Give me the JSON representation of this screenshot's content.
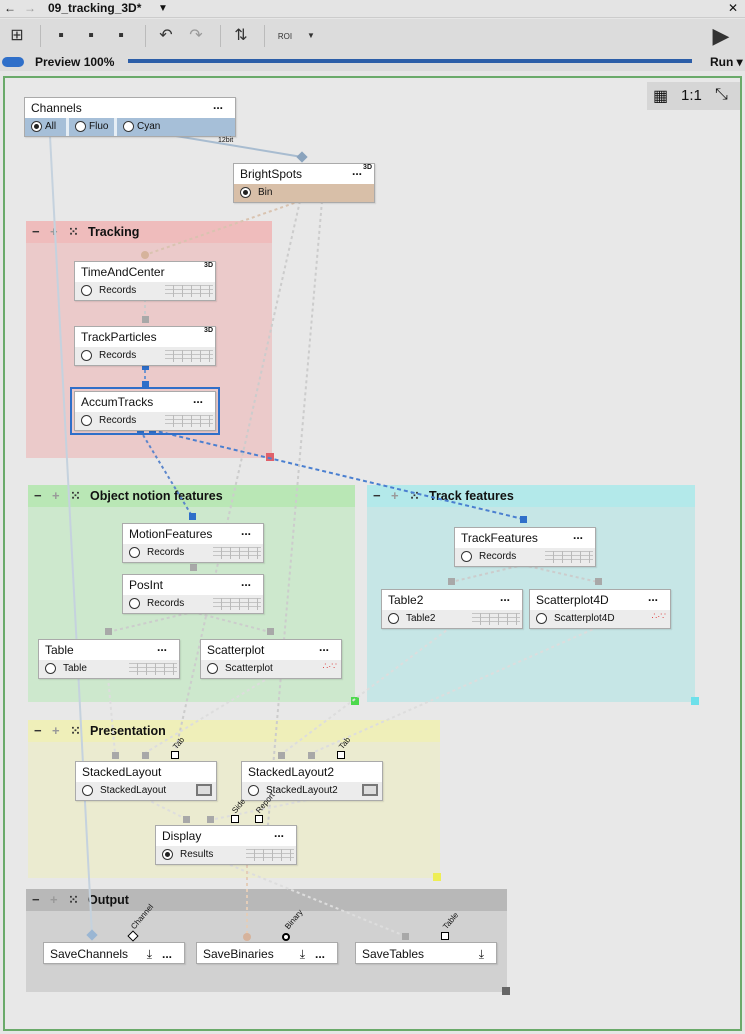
{
  "window": {
    "title": "09_tracking_3D*",
    "back": "←",
    "forward": "→",
    "close": "✕"
  },
  "toolbar": {
    "roi_label": "ROI",
    "preview_label": "Preview 100%",
    "preview_fraction": 1.0,
    "run_label": "Run"
  },
  "canvas_controls": {
    "zoom_label": "1:1"
  },
  "nodes": {
    "channels": {
      "title": "Channels",
      "menu": "...",
      "outputs": [
        "All",
        "Fluo",
        "Cyan"
      ],
      "port_label": "12bit"
    },
    "brightspots": {
      "title": "BrightSpots",
      "badge": "3D",
      "menu": "...",
      "output": "Bin"
    },
    "timeandcenter": {
      "title": "TimeAndCenter",
      "badge": "3D",
      "menu": "...",
      "output": "Records"
    },
    "trackparticles": {
      "title": "TrackParticles",
      "badge": "3D",
      "menu": "...",
      "output": "Records"
    },
    "accumtracks": {
      "title": "AccumTracks",
      "menu": "...",
      "output": "Records"
    },
    "motionfeatures": {
      "title": "MotionFeatures",
      "menu": "...",
      "output": "Records"
    },
    "posint": {
      "title": "PosInt",
      "menu": "...",
      "output": "Records"
    },
    "table": {
      "title": "Table",
      "menu": "...",
      "output": "Table"
    },
    "scatterplot": {
      "title": "Scatterplot",
      "menu": "...",
      "output": "Scatterplot"
    },
    "trackfeatures": {
      "title": "TrackFeatures",
      "menu": "...",
      "output": "Records"
    },
    "table2": {
      "title": "Table2",
      "menu": "...",
      "output": "Table2"
    },
    "scatterplot4d": {
      "title": "Scatterplot4D",
      "menu": "...",
      "output": "Scatterplot4D"
    },
    "stackedlayout": {
      "title": "StackedLayout",
      "output": "StackedLayout",
      "port_label": "Tab"
    },
    "stackedlayout2": {
      "title": "StackedLayout2",
      "output": "StackedLayout2",
      "port_label": "Tab"
    },
    "display": {
      "title": "Display",
      "menu": "...",
      "output": "Results",
      "port_labels": [
        "Side",
        "Report"
      ]
    },
    "savechannels": {
      "title": "SaveChannels",
      "menu": "...",
      "port_label": "Channel"
    },
    "savebinaries": {
      "title": "SaveBinaries",
      "menu": "...",
      "port_label": "Binary"
    },
    "savetables": {
      "title": "SaveTables",
      "port_label": "Table"
    }
  },
  "groups": {
    "tracking": {
      "title": "Tracking",
      "color": "#efbcbc"
    },
    "object": {
      "title": "Object notion features",
      "color": "#b9e7b5"
    },
    "track": {
      "title": "Track features",
      "color": "#b3e9ea"
    },
    "presentation": {
      "title": "Presentation",
      "color": "#efefb9"
    },
    "output": {
      "title": "Output",
      "color": "#b8b8b8"
    }
  },
  "group_controls": {
    "collapse": "−",
    "expand": "+",
    "fit": "⁙"
  }
}
